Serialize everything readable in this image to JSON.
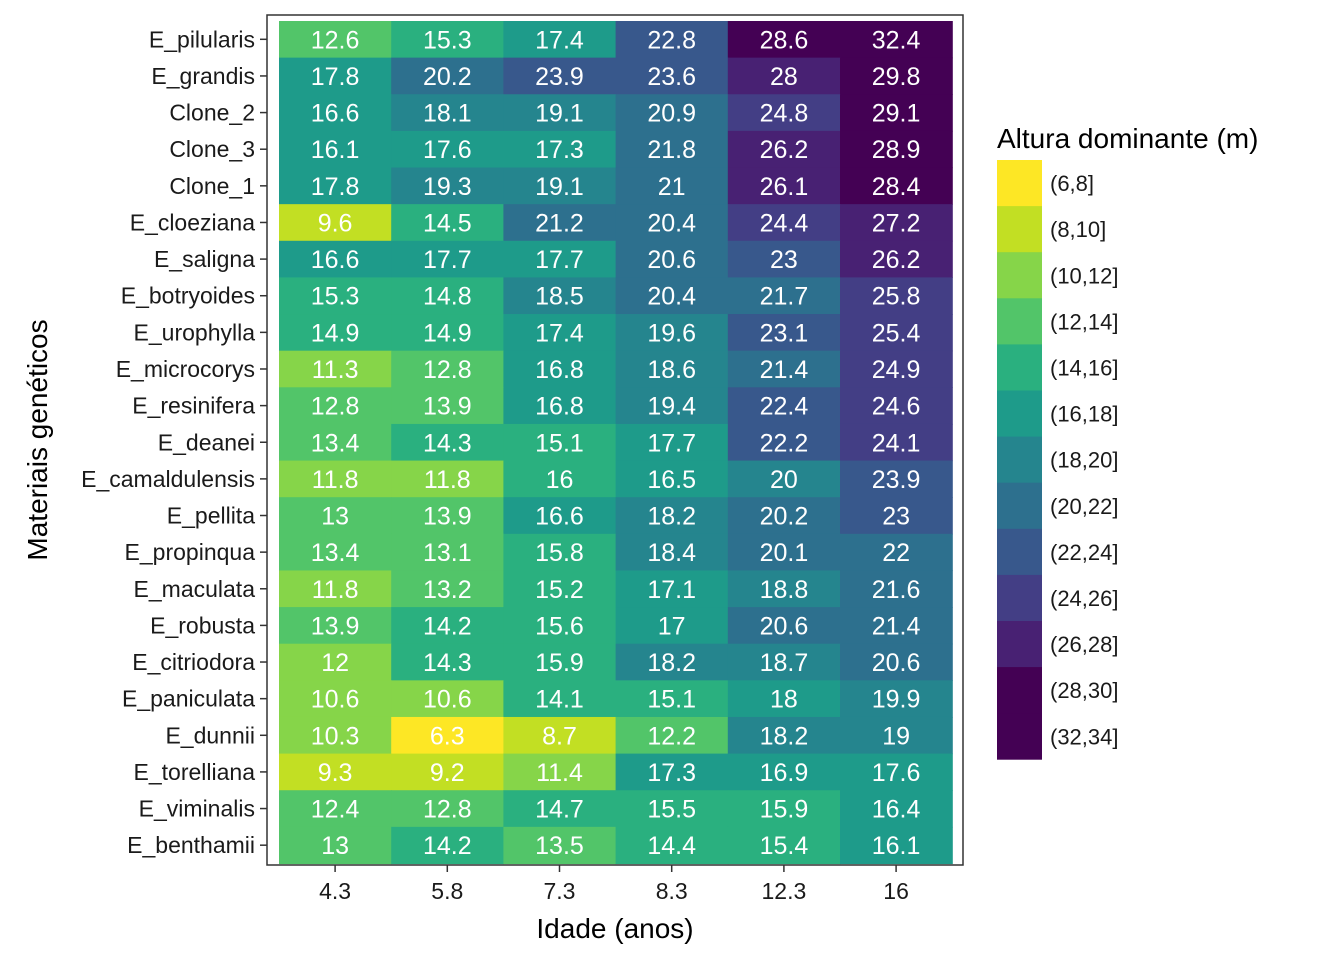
{
  "chart_data": {
    "type": "heatmap",
    "xlabel": "Idade (anos)",
    "ylabel": "Materiais genéticos",
    "x": [
      "4.3",
      "5.8",
      "7.3",
      "8.3",
      "12.3",
      "16"
    ],
    "y": [
      "E_pilularis",
      "E_grandis",
      "Clone_2",
      "Clone_3",
      "Clone_1",
      "E_cloeziana",
      "E_saligna",
      "E_botryoides",
      "E_urophylla",
      "E_microcorys",
      "E_resinifera",
      "E_deanei",
      "E_camaldulensis",
      "E_pellita",
      "E_propinqua",
      "E_maculata",
      "E_robusta",
      "E_citriodora",
      "E_paniculata",
      "E_dunnii",
      "E_torelliana",
      "E_viminalis",
      "E_benthamii"
    ],
    "values": [
      [
        12.6,
        15.3,
        17.4,
        22.8,
        28.6,
        32.4
      ],
      [
        17.8,
        20.2,
        23.9,
        23.6,
        28,
        29.8
      ],
      [
        16.6,
        18.1,
        19.1,
        20.9,
        24.8,
        29.1
      ],
      [
        16.1,
        17.6,
        17.3,
        21.8,
        26.2,
        28.9
      ],
      [
        17.8,
        19.3,
        19.1,
        21,
        26.1,
        28.4
      ],
      [
        9.6,
        14.5,
        21.2,
        20.4,
        24.4,
        27.2
      ],
      [
        16.6,
        17.7,
        17.7,
        20.6,
        23,
        26.2
      ],
      [
        15.3,
        14.8,
        18.5,
        20.4,
        21.7,
        25.8
      ],
      [
        14.9,
        14.9,
        17.4,
        19.6,
        23.1,
        25.4
      ],
      [
        11.3,
        12.8,
        16.8,
        18.6,
        21.4,
        24.9
      ],
      [
        12.8,
        13.9,
        16.8,
        19.4,
        22.4,
        24.6
      ],
      [
        13.4,
        14.3,
        15.1,
        17.7,
        22.2,
        24.1
      ],
      [
        11.8,
        11.8,
        16,
        16.5,
        20,
        23.9
      ],
      [
        13,
        13.9,
        16.6,
        18.2,
        20.2,
        23
      ],
      [
        13.4,
        13.1,
        15.8,
        18.4,
        20.1,
        22
      ],
      [
        11.8,
        13.2,
        15.2,
        17.1,
        18.8,
        21.6
      ],
      [
        13.9,
        14.2,
        15.6,
        17,
        20.6,
        21.4
      ],
      [
        12,
        14.3,
        15.9,
        18.2,
        18.7,
        20.6
      ],
      [
        10.6,
        10.6,
        14.1,
        15.1,
        18,
        19.9
      ],
      [
        10.3,
        6.3,
        8.7,
        12.2,
        18.2,
        19
      ],
      [
        9.3,
        9.2,
        11.4,
        17.3,
        16.9,
        17.6
      ],
      [
        12.4,
        12.8,
        14.7,
        15.5,
        15.9,
        16.4
      ],
      [
        13,
        14.2,
        13.5,
        14.4,
        15.4,
        16.1
      ]
    ],
    "legend": {
      "title": "Altura dominante (m)",
      "position": "right",
      "bins": [
        {
          "label": "(6,8]",
          "min": 6,
          "max": 8,
          "color": "#fde725"
        },
        {
          "label": "(8,10]",
          "min": 8,
          "max": 10,
          "color": "#c2df23"
        },
        {
          "label": "(10,12]",
          "min": 10,
          "max": 12,
          "color": "#86d549"
        },
        {
          "label": "(12,14]",
          "min": 12,
          "max": 14,
          "color": "#52c569"
        },
        {
          "label": "(14,16]",
          "min": 14,
          "max": 16,
          "color": "#2ab07f"
        },
        {
          "label": "(16,18]",
          "min": 16,
          "max": 18,
          "color": "#1e9b8a"
        },
        {
          "label": "(18,20]",
          "min": 18,
          "max": 20,
          "color": "#25858e"
        },
        {
          "label": "(20,22]",
          "min": 20,
          "max": 22,
          "color": "#2d708e"
        },
        {
          "label": "(22,24]",
          "min": 22,
          "max": 24,
          "color": "#38588c"
        },
        {
          "label": "(24,26]",
          "min": 24,
          "max": 26,
          "color": "#433e85"
        },
        {
          "label": "(26,28]",
          "min": 26,
          "max": 28,
          "color": "#482173"
        },
        {
          "label": "(28,30]",
          "min": 28,
          "max": 30,
          "color": "#440154"
        },
        {
          "label": "(32,34]",
          "min": 32,
          "max": 34,
          "color": "#440154"
        }
      ]
    },
    "cell_label_color": "#ffffff",
    "panel_border_color": "#333333",
    "grid": false
  }
}
